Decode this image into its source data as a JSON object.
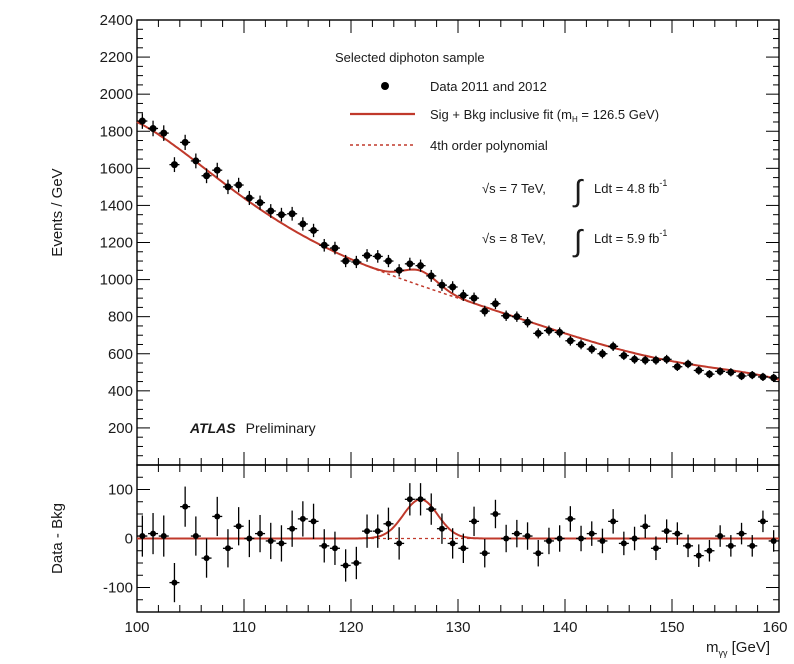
{
  "chart_data": [
    {
      "type": "scatter",
      "panel": "main",
      "ylabel": "Events / GeV",
      "xlim": [
        100,
        160
      ],
      "ylim": [
        0,
        2400
      ],
      "yticks": [
        "200",
        "400",
        "600",
        "800",
        "1000",
        "1200",
        "1400",
        "1600",
        "1800",
        "2000",
        "2200",
        "2400"
      ],
      "legend_title": "Selected diphoton sample",
      "legend": [
        {
          "label": "Data 2011 and 2012",
          "style": "marker",
          "color": "#000000"
        },
        {
          "label": "Sig + Bkg inclusive fit (m",
          "label_sub": "H",
          "label_tail": " = 126.5 GeV)",
          "style": "solid-line",
          "color": "#c0392b"
        },
        {
          "label": "4th order polynomial",
          "style": "dashed-line",
          "color": "#c0392b"
        }
      ],
      "lumi": [
        {
          "sqrt": "√s = 7 TeV,",
          "int": "∫",
          "text": "Ldt = 4.8 fb",
          "sup": "-1"
        },
        {
          "sqrt": "√s = 8 TeV,",
          "int": "∫",
          "text": "Ldt = 5.9 fb",
          "sup": "-1"
        }
      ],
      "atlas_label": "ATLAS",
      "atlas_sub": "Preliminary",
      "series": [
        {
          "name": "Data 2011 and 2012",
          "x": [
            100.5,
            101.5,
            102.5,
            103.5,
            104.5,
            105.5,
            106.5,
            107.5,
            108.5,
            109.5,
            110.5,
            111.5,
            112.5,
            113.5,
            114.5,
            115.5,
            116.5,
            117.5,
            118.5,
            119.5,
            120.5,
            121.5,
            122.5,
            123.5,
            124.5,
            125.5,
            126.5,
            127.5,
            128.5,
            129.5,
            130.5,
            131.5,
            132.5,
            133.5,
            134.5,
            135.5,
            136.5,
            137.5,
            138.5,
            139.5,
            140.5,
            141.5,
            142.5,
            143.5,
            144.5,
            145.5,
            146.5,
            147.5,
            148.5,
            149.5,
            150.5,
            151.5,
            152.5,
            153.5,
            154.5,
            155.5,
            156.5,
            157.5,
            158.5,
            159.5
          ],
          "y": [
            1855,
            1815,
            1790,
            1620,
            1740,
            1640,
            1560,
            1590,
            1500,
            1510,
            1440,
            1415,
            1370,
            1350,
            1355,
            1300,
            1265,
            1185,
            1170,
            1100,
            1095,
            1130,
            1125,
            1100,
            1050,
            1085,
            1075,
            1020,
            970,
            960,
            915,
            900,
            830,
            870,
            805,
            800,
            770,
            710,
            725,
            715,
            670,
            650,
            625,
            600,
            640,
            590,
            570,
            565,
            565,
            570,
            530,
            545,
            510,
            490,
            505,
            500,
            480,
            485,
            475,
            470
          ],
          "err": [
            42,
            42,
            42,
            40,
            41,
            40,
            40,
            40,
            39,
            39,
            38,
            38,
            37,
            37,
            37,
            36,
            36,
            34,
            34,
            33,
            33,
            34,
            34,
            33,
            33,
            33,
            33,
            32,
            31,
            31,
            30,
            30,
            29,
            29,
            28,
            28,
            28,
            27,
            27,
            27,
            26,
            26,
            25,
            25,
            25,
            24,
            24,
            24,
            24,
            24,
            23,
            23,
            23,
            22,
            22,
            22,
            22,
            22,
            22,
            22
          ]
        },
        {
          "name": "Sig + Bkg inclusive fit (m_H = 126.5 GeV)",
          "model": "poly4_plus_gaussian",
          "background_points": {
            "x": [
              100,
              110,
              120,
              130,
              140,
              150,
              160
            ],
            "y": [
              1850,
              1440,
              1110,
              900,
              710,
              560,
              460
            ]
          },
          "signal": {
            "mass": 126.5,
            "sigma": 1.6,
            "amplitude": 80
          }
        },
        {
          "name": "4th order polynomial",
          "model": "poly4",
          "background_points": {
            "x": [
              100,
              110,
              120,
              130,
              140,
              150,
              160
            ],
            "y": [
              1850,
              1440,
              1110,
              900,
              710,
              560,
              460
            ]
          }
        }
      ]
    },
    {
      "type": "scatter",
      "panel": "ratio",
      "ylabel": "Data - Bkg",
      "xlabel": "m",
      "xlabel_sub": "γγ",
      "xlabel_tail": " [GeV]",
      "xlim": [
        100,
        160
      ],
      "ylim": [
        -150,
        150
      ],
      "xticks": [
        "100",
        "110",
        "120",
        "130",
        "140",
        "150",
        "160"
      ],
      "yticks": [
        "-100",
        "0",
        "100"
      ],
      "series": [
        {
          "name": "Data - Bkg",
          "x": [
            100.5,
            101.5,
            102.5,
            103.5,
            104.5,
            105.5,
            106.5,
            107.5,
            108.5,
            109.5,
            110.5,
            111.5,
            112.5,
            113.5,
            114.5,
            115.5,
            116.5,
            117.5,
            118.5,
            119.5,
            120.5,
            121.5,
            122.5,
            123.5,
            124.5,
            125.5,
            126.5,
            127.5,
            128.5,
            129.5,
            130.5,
            131.5,
            132.5,
            133.5,
            134.5,
            135.5,
            136.5,
            137.5,
            138.5,
            139.5,
            140.5,
            141.5,
            142.5,
            143.5,
            144.5,
            145.5,
            146.5,
            147.5,
            148.5,
            149.5,
            150.5,
            151.5,
            152.5,
            153.5,
            154.5,
            155.5,
            156.5,
            157.5,
            158.5,
            159.5
          ],
          "y": [
            5,
            10,
            5,
            -90,
            65,
            5,
            -40,
            45,
            -20,
            25,
            0,
            10,
            -5,
            -10,
            20,
            40,
            35,
            -15,
            -20,
            -55,
            -50,
            15,
            15,
            30,
            -10,
            80,
            80,
            60,
            20,
            -10,
            -20,
            35,
            -30,
            50,
            0,
            10,
            5,
            -30,
            -5,
            0,
            40,
            0,
            10,
            -5,
            35,
            -10,
            0,
            25,
            -20,
            15,
            10,
            -15,
            -35,
            -25,
            5,
            -15,
            10,
            -15,
            35,
            -5
          ],
          "err": [
            42,
            42,
            42,
            40,
            41,
            40,
            40,
            40,
            39,
            39,
            38,
            38,
            37,
            37,
            37,
            36,
            36,
            34,
            34,
            33,
            33,
            34,
            34,
            33,
            33,
            33,
            33,
            32,
            31,
            31,
            30,
            30,
            29,
            29,
            28,
            28,
            28,
            27,
            27,
            27,
            26,
            26,
            25,
            25,
            25,
            24,
            24,
            24,
            24,
            24,
            23,
            23,
            23,
            22,
            22,
            22,
            22,
            22,
            22,
            22
          ]
        }
      ]
    }
  ]
}
